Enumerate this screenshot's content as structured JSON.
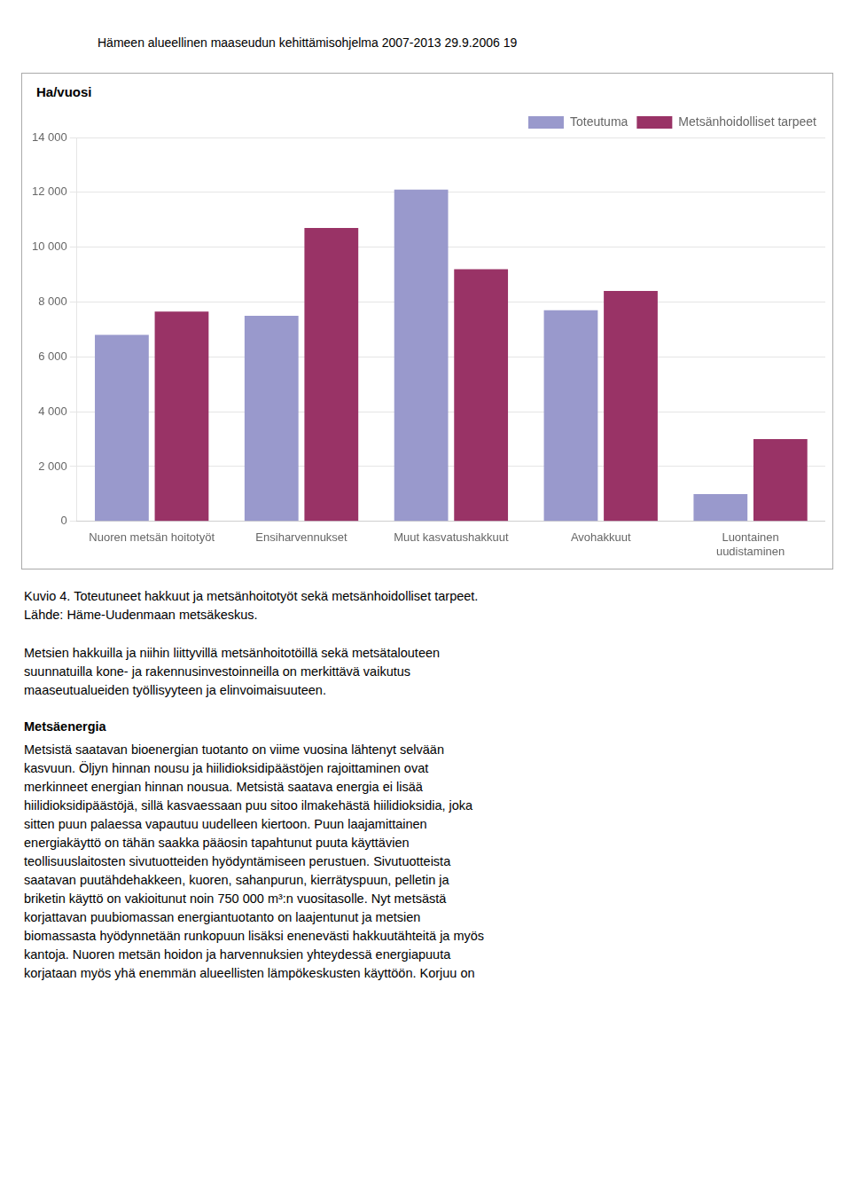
{
  "chart_data": {
    "type": "bar",
    "header": "Hämeen alueellinen maaseudun kehittämisohjelma 2007-2013 29.9.2006  19",
    "ylabel": "Ha/vuosi",
    "categories": [
      "Nuoren metsän hoitotyöt",
      "Ensiharvennukset",
      "Muut kasvatushakkuut",
      "Avohakkuut",
      "Luontainen\nuudistaminen"
    ],
    "series": [
      {
        "name": "Toteutuma",
        "color": "#9999cc",
        "values": [
          6800,
          7500,
          12100,
          7700,
          1000
        ]
      },
      {
        "name": "Metsänhoidolliset tarpeet",
        "color": "#993366",
        "values": [
          7650,
          10700,
          9200,
          8400,
          3000
        ]
      }
    ],
    "ylim": [
      0,
      14000
    ],
    "yticks": [
      0,
      {
        "value": 2000,
        "label": "2 000"
      },
      {
        "value": 4000,
        "label": "4 000"
      },
      {
        "value": 6000,
        "label": "6 000"
      },
      {
        "value": 8000,
        "label": "8 000"
      },
      {
        "value": 10000,
        "label": "10 000"
      },
      {
        "value": 12000,
        "label": "12 000"
      },
      {
        "value": 14000,
        "label": "14 000"
      }
    ],
    "grid": true,
    "legend": "upper right",
    "caption_lines": [
      "Kuvio 4. Toteutuneet hakkuut ja metsänhoitotyöt sekä metsänhoidolliset tarpeet.",
      "Lähde: Häme-Uudenmaan metsäkeskus."
    ],
    "sections": [
      {
        "text": "Metsien hakkuilla ja niihin liittyvillä metsänhoitotöillä sekä metsätalouteen\nsuunnatuilla kone- ja rakennusinvestoinneilla on merkittävä vaikutus\nmaaseutualueiden työllisyyteen ja elinvoimaisuuteen."
      },
      {
        "heading": "Metsäenergia",
        "text": "Metsistä saatavan bioenergian tuotanto on viime vuosina lähtenyt selvään\nkasvuun. Öljyn hinnan nousu ja hiilidioksidipäästöjen rajoittaminen ovat\nmerkinneet energian hinnan nousua. Metsistä saatava energia ei lisää\nhiilidioksidipäästöjä, sillä kasvaessaan puu sitoo ilmakehästä hiilidioksidia, joka\nsitten puun palaessa vapautuu uudelleen kiertoon. Puun laajamittainen\nenergiakäyttö on tähän saakka pääosin tapahtunut puuta käyttävien\nteollisuuslaitosten sivutuotteiden hyödyntämiseen perustuen. Sivutuotteista\nsaatavan puutähdehakkeen, kuoren, sahanpurun, kierrätyspuun, pelletin ja\nbriketin käyttö on vakioitunut noin 750 000 m³:n vuositasolle. Nyt metsästä\nkorjattavan puubiomassan energiantuotanto on laajentunut ja metsien\nbiomassasta hyödynnetään runkopuun lisäksi enenevästi hakkuutähteitä ja myös\nkantoja. Nuoren metsän hoidon ja harvennuksien yhteydessä energiapuuta\nkorjataan myös yhä enemmän alueellisten lämpökeskusten käyttöön. Korjuu on"
      }
    ]
  }
}
